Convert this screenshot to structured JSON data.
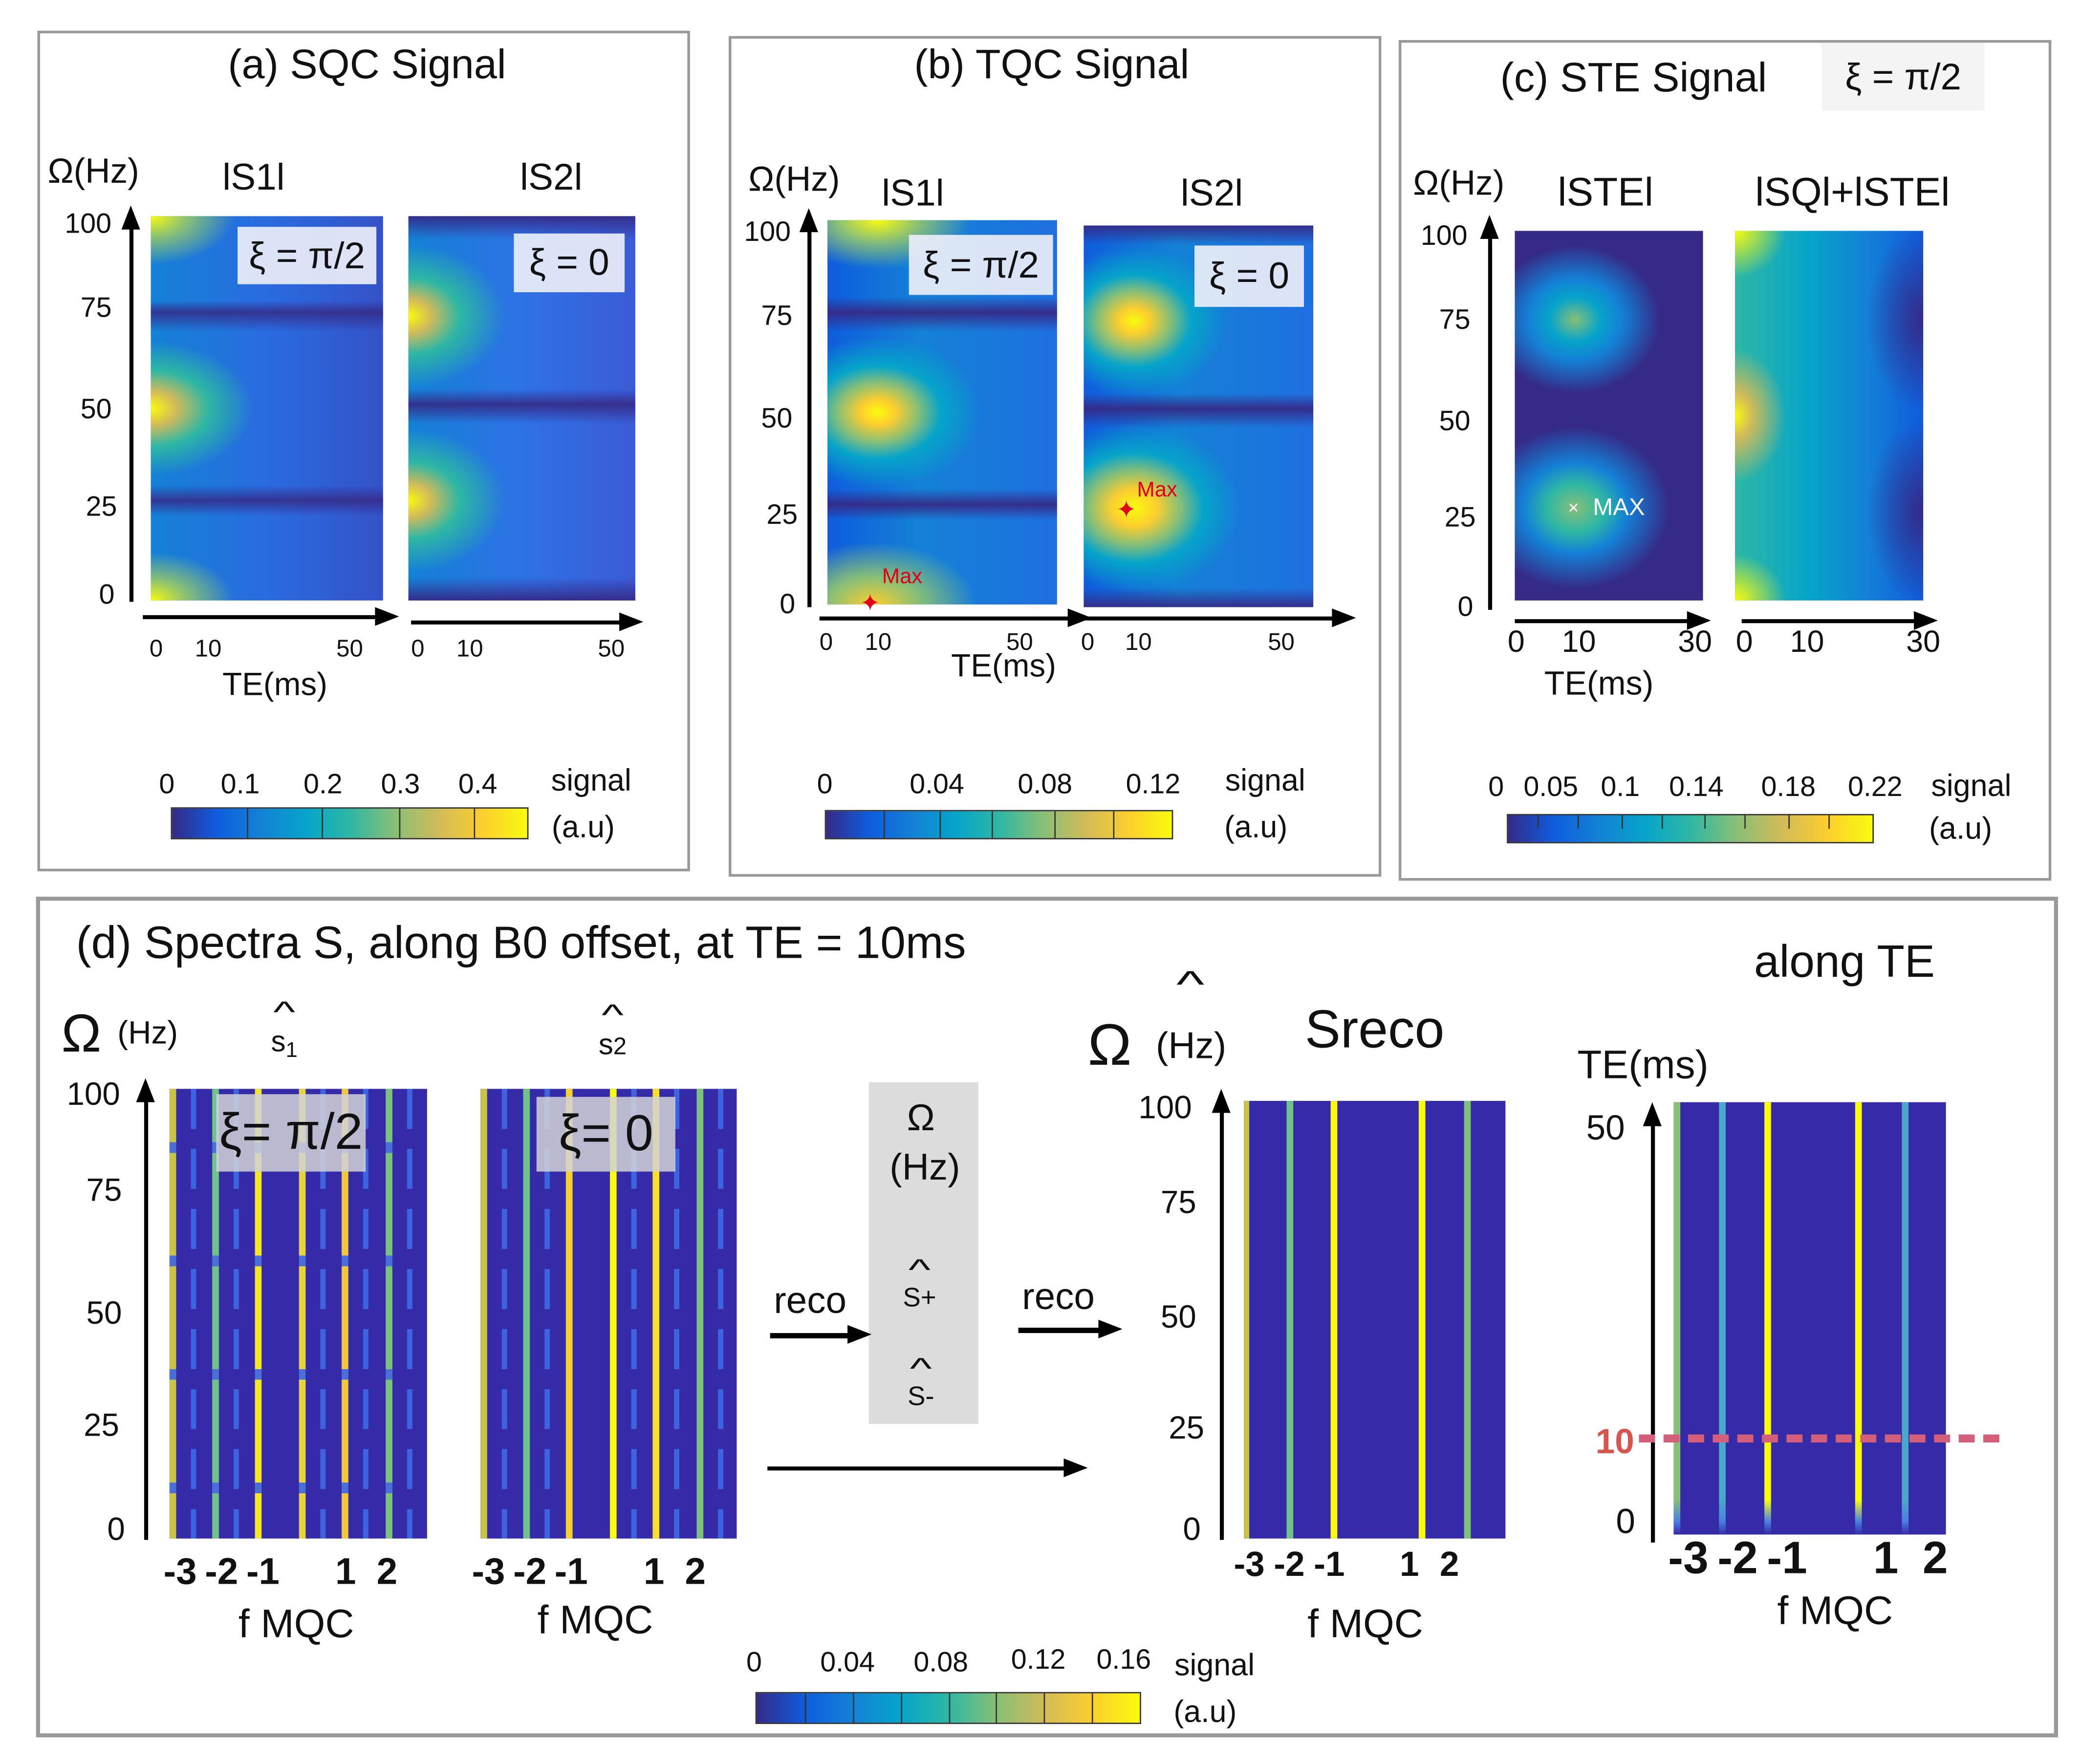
{
  "panel_a": {
    "title": "(a) SQC Signal",
    "ylabel": "Ω(Hz)",
    "left_title": "lS1l",
    "right_title": "lS2l",
    "left_xi": "ξ = π/2",
    "right_xi": "ξ = 0",
    "yticks": [
      "100",
      "75",
      "50",
      "25",
      "0"
    ],
    "xticks_left": [
      "0",
      "10",
      "50"
    ],
    "xticks_right": [
      "0",
      "10",
      "50"
    ],
    "xlabel": "TE(ms)",
    "colorbar": {
      "ticks": [
        "0",
        "0.1",
        "0.2",
        "0.3",
        "0.4"
      ],
      "label1": "signal",
      "label2": "(a.u)"
    }
  },
  "panel_b": {
    "title": "(b) TQC Signal",
    "ylabel": "Ω(Hz)",
    "left_title": "lS1l",
    "right_title": "lS2l",
    "left_xi": "ξ = π/2",
    "right_xi": "ξ = 0",
    "max_label": "Max",
    "yticks": [
      "100",
      "75",
      "50",
      "25",
      "0"
    ],
    "xticks_left": [
      "0",
      "10",
      "50"
    ],
    "xticks_right": [
      "0",
      "10",
      "50"
    ],
    "xlabel": "TE(ms)",
    "colorbar": {
      "ticks": [
        "0",
        "0.04",
        "0.08",
        "0.12"
      ],
      "label1": "signal",
      "label2": "(a.u)"
    }
  },
  "panel_c": {
    "title": "(c) STE Signal",
    "xi": "ξ = π/2",
    "ylabel": "Ω(Hz)",
    "left_title": "lSTEl",
    "right_title": "lSQl+lSTEl",
    "max_label": "MAX",
    "max_marker": "×",
    "yticks": [
      "100",
      "75",
      "50",
      "25",
      "0"
    ],
    "xticks_left": [
      "0",
      "10",
      "30"
    ],
    "xticks_right": [
      "0",
      "10",
      "30"
    ],
    "xlabel": "TE(ms)",
    "colorbar": {
      "ticks": [
        "0",
        "0.05",
        "0.1",
        "0.14",
        "0.18",
        "0.22"
      ],
      "label1": "signal",
      "label2": "(a.u)"
    }
  },
  "panel_d": {
    "title": "(d) Spectra S, along B0 offset, at TE = 10ms",
    "along_te": "along TE",
    "omega": "Ω",
    "hz": "(Hz)",
    "hat": "^",
    "s1": "s",
    "s1_sub": "1",
    "s2": "s",
    "s2_sub": "2",
    "s1_xi": "ξ= π/2",
    "s2_xi": "ξ= 0",
    "yticks": [
      "100",
      "75",
      "50",
      "25",
      "0"
    ],
    "fmqc_ticks": [
      "-3",
      "-2",
      "-1",
      "1",
      "2"
    ],
    "xlabel": "f MQC",
    "box": {
      "omega": "Ω",
      "hz": "(Hz)",
      "splus": "S+",
      "sminus": "S-"
    },
    "reco": "reco",
    "sreco": "Sreco",
    "te_label": "TE(ms)",
    "te_ticks": [
      "50",
      "10",
      "0"
    ],
    "te_marker_color": "#d45f7a",
    "colorbar": {
      "ticks": [
        "0",
        "0.04",
        "0.08",
        "0.12",
        "0.16"
      ],
      "label1": "signal",
      "label2": "(a.u)"
    },
    "s1_lines": [
      {
        "f": -3,
        "color": "#c9c34a"
      },
      {
        "f": -2,
        "color": "#6fc38a"
      },
      {
        "f": -1,
        "color": "#f4e528"
      },
      {
        "f": 0,
        "color": "#e8d53a"
      },
      {
        "f": 1,
        "color": "#f0c83a"
      },
      {
        "f": 2,
        "color": "#7cc27a"
      }
    ],
    "s2_lines": [
      {
        "f": -3,
        "color": "#c9c34a"
      },
      {
        "f": -2,
        "color": "#6fc38a"
      },
      {
        "f": -1,
        "color": "#f4d030"
      },
      {
        "f": 0,
        "color": "#f9fb0e"
      },
      {
        "f": 1,
        "color": "#f9e020"
      },
      {
        "f": 2,
        "color": "#7cc27a"
      }
    ],
    "sreco_lines": [
      {
        "f": -3,
        "color": "#c9c34a"
      },
      {
        "f": -2,
        "color": "#6fc38a"
      },
      {
        "f": -1,
        "color": "#f9fb0e"
      },
      {
        "f": 1,
        "color": "#f9fb0e"
      },
      {
        "f": 2,
        "color": "#7cc27a"
      }
    ],
    "te_lines": [
      {
        "f": -3,
        "color": "#87bf77"
      },
      {
        "f": -2,
        "color": "#4aa8c8"
      },
      {
        "f": -1,
        "color": "#f9fb0e"
      },
      {
        "f": 1,
        "color": "#f9fb0e"
      },
      {
        "f": 2,
        "color": "#4aa8c8"
      }
    ]
  }
}
